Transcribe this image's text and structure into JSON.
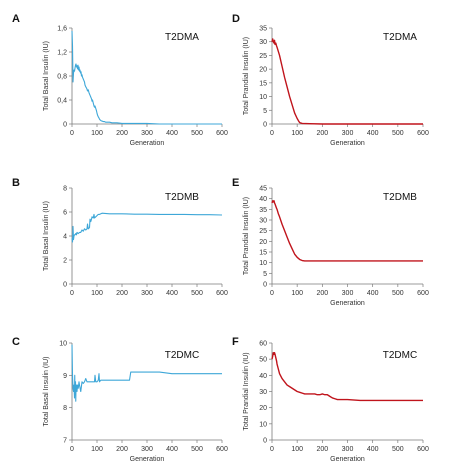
{
  "chart_data": [
    {
      "type": "line",
      "letter": "A",
      "title": "T2DMA",
      "xlabel": "Generation",
      "ylabel": "Total Basal Insulin (IU)",
      "xlim": [
        0,
        600
      ],
      "ylim": [
        0,
        1.6
      ],
      "xticks": [
        0,
        100,
        200,
        300,
        400,
        500,
        600
      ],
      "yticks": [
        0,
        0.4,
        0.8,
        1.2,
        1.6
      ],
      "ytick_labels": [
        "0",
        "0,4",
        "0,8",
        "1,2",
        "1,6"
      ],
      "grid": false,
      "color": "#3ea7d8",
      "series": [
        {
          "x": [
            0,
            2,
            4,
            6,
            8,
            10,
            12,
            14,
            16,
            18,
            20,
            22,
            24,
            26,
            28,
            30,
            32,
            34,
            36,
            38,
            40,
            42,
            45,
            48,
            50,
            52,
            55,
            58,
            60,
            62,
            65,
            68,
            70,
            72,
            75,
            78,
            80,
            82,
            85,
            88,
            90,
            92,
            95,
            98,
            100,
            102,
            105,
            108,
            110,
            112,
            115,
            118,
            120,
            125,
            130,
            135,
            140,
            150,
            160,
            170,
            180,
            200,
            250,
            300,
            350,
            400,
            450,
            500,
            550,
            600
          ],
          "y": [
            1.55,
            1.3,
            0.7,
            0.85,
            0.9,
            0.88,
            0.93,
            0.98,
            1.0,
            0.95,
            0.97,
            0.92,
            0.98,
            0.9,
            0.95,
            0.88,
            0.9,
            0.85,
            0.87,
            0.8,
            0.82,
            0.78,
            0.75,
            0.72,
            0.7,
            0.65,
            0.62,
            0.6,
            0.58,
            0.55,
            0.57,
            0.52,
            0.5,
            0.48,
            0.45,
            0.42,
            0.38,
            0.4,
            0.35,
            0.3,
            0.28,
            0.3,
            0.26,
            0.22,
            0.18,
            0.15,
            0.12,
            0.1,
            0.08,
            0.07,
            0.06,
            0.05,
            0.05,
            0.04,
            0.04,
            0.03,
            0.03,
            0.03,
            0.02,
            0.02,
            0.02,
            0.01,
            0.01,
            0.01,
            0.0,
            0.0,
            0.0,
            0.0,
            0.0,
            0.0
          ]
        }
      ]
    },
    {
      "type": "line",
      "letter": "B",
      "title": "T2DMB",
      "xlabel": "",
      "ylabel": "Total Basal Insulin (IU)",
      "xlim": [
        0,
        600
      ],
      "ylim": [
        0,
        8
      ],
      "xticks": [
        0,
        100,
        200,
        300,
        400,
        500,
        600
      ],
      "yticks": [
        0,
        2,
        4,
        6,
        8
      ],
      "ytick_labels": [
        "0",
        "2",
        "4",
        "6",
        "8"
      ],
      "grid": false,
      "color": "#3ea7d8",
      "series": [
        {
          "x": [
            0,
            2,
            4,
            6,
            8,
            10,
            12,
            15,
            18,
            20,
            25,
            30,
            35,
            40,
            45,
            50,
            55,
            60,
            62,
            65,
            70,
            72,
            75,
            78,
            80,
            85,
            88,
            90,
            95,
            100,
            105,
            110,
            120,
            150,
            200,
            250,
            300,
            350,
            400,
            450,
            500,
            550,
            600
          ],
          "y": [
            3.8,
            3.5,
            4.8,
            3.7,
            4.0,
            4.1,
            4.1,
            4.2,
            4.1,
            4.3,
            4.2,
            4.3,
            4.3,
            4.5,
            4.4,
            4.6,
            4.5,
            4.6,
            5.0,
            4.6,
            4.7,
            5.4,
            5.2,
            5.4,
            5.6,
            5.5,
            5.8,
            5.5,
            5.6,
            5.7,
            5.8,
            5.8,
            5.9,
            5.85,
            5.85,
            5.82,
            5.82,
            5.8,
            5.8,
            5.8,
            5.78,
            5.78,
            5.75
          ]
        }
      ]
    },
    {
      "type": "line",
      "letter": "C",
      "title": "T2DMC",
      "xlabel": "Generation",
      "ylabel": "Total Basal Insulin (IU)",
      "xlim": [
        0,
        600
      ],
      "ylim": [
        7,
        10
      ],
      "xticks": [
        0,
        100,
        200,
        300,
        400,
        500,
        600
      ],
      "yticks": [
        7,
        8,
        9,
        10
      ],
      "ytick_labels": [
        "7",
        "8",
        "9",
        "10"
      ],
      "grid": false,
      "color": "#3ea7d8",
      "series": [
        {
          "x": [
            0,
            2,
            4,
            6,
            8,
            10,
            11,
            12,
            14,
            15,
            16,
            18,
            20,
            22,
            25,
            28,
            30,
            35,
            40,
            45,
            50,
            55,
            60,
            80,
            90,
            92,
            95,
            100,
            105,
            108,
            110,
            115,
            120,
            150,
            200,
            230,
            235,
            250,
            300,
            350,
            400,
            450,
            500,
            550,
            600
          ],
          "y": [
            9.95,
            9.0,
            8.6,
            8.5,
            8.7,
            8.3,
            9.0,
            8.4,
            8.8,
            8.2,
            8.6,
            8.7,
            8.5,
            8.7,
            8.6,
            8.8,
            8.7,
            8.5,
            8.8,
            8.75,
            8.8,
            8.9,
            8.8,
            8.8,
            8.8,
            9.0,
            8.8,
            8.8,
            8.85,
            9.05,
            8.8,
            8.85,
            8.85,
            8.85,
            8.85,
            8.85,
            9.1,
            9.1,
            9.1,
            9.1,
            9.05,
            9.05,
            9.05,
            9.05,
            9.05
          ]
        }
      ]
    },
    {
      "type": "line",
      "letter": "D",
      "title": "T2DMA",
      "xlabel": "Generation",
      "ylabel": "Total Prandial Insulin (IU)",
      "xlim": [
        0,
        600
      ],
      "ylim": [
        0,
        35
      ],
      "xticks": [
        0,
        100,
        200,
        300,
        400,
        500,
        600
      ],
      "yticks": [
        0,
        5,
        10,
        15,
        20,
        25,
        30,
        35
      ],
      "ytick_labels": [
        "0",
        "5",
        "10",
        "15",
        "20",
        "25",
        "30",
        "35"
      ],
      "grid": false,
      "color": "#c0141c",
      "series": [
        {
          "x": [
            0,
            3,
            5,
            8,
            10,
            12,
            15,
            18,
            20,
            25,
            30,
            40,
            50,
            60,
            70,
            80,
            90,
            100,
            105,
            110,
            120,
            150,
            200,
            300,
            400,
            500,
            600
          ],
          "y": [
            30,
            31,
            30,
            29.5,
            30.5,
            29,
            29.5,
            28.5,
            28,
            26.5,
            25,
            21,
            17,
            13.5,
            10,
            7,
            4,
            2,
            1.2,
            0.5,
            0.2,
            0.1,
            0,
            0,
            0,
            0,
            0
          ]
        }
      ]
    },
    {
      "type": "line",
      "letter": "E",
      "title": "T2DMB",
      "xlabel": "Generation",
      "ylabel": "Total Prandial Insulin (IU)",
      "xlim": [
        0,
        600
      ],
      "ylim": [
        0,
        45
      ],
      "xticks": [
        0,
        100,
        200,
        300,
        400,
        500,
        600
      ],
      "yticks": [
        0,
        5,
        10,
        15,
        20,
        25,
        30,
        35,
        40,
        45
      ],
      "ytick_labels": [
        "0",
        "5",
        "10",
        "15",
        "20",
        "25",
        "30",
        "35",
        "40",
        "45"
      ],
      "grid": false,
      "color": "#c0141c",
      "series": [
        {
          "x": [
            0,
            3,
            5,
            8,
            10,
            12,
            15,
            18,
            20,
            25,
            30,
            40,
            50,
            60,
            70,
            80,
            90,
            100,
            110,
            120,
            130,
            150,
            200,
            300,
            400,
            500,
            600
          ],
          "y": [
            38,
            39,
            38.5,
            39,
            38,
            37.5,
            36.5,
            35.5,
            35,
            33,
            31.5,
            28,
            25,
            22,
            19,
            16.5,
            14,
            12.5,
            11.5,
            11,
            10.8,
            10.8,
            10.8,
            10.8,
            10.8,
            10.8,
            10.8
          ]
        }
      ]
    },
    {
      "type": "line",
      "letter": "F",
      "title": "T2DMC",
      "xlabel": "Generation",
      "ylabel": "Total Prandial Insulin (IU)",
      "xlim": [
        0,
        600
      ],
      "ylim": [
        0,
        60
      ],
      "xticks": [
        0,
        100,
        200,
        300,
        400,
        500,
        600
      ],
      "yticks": [
        0,
        10,
        20,
        30,
        40,
        50,
        60
      ],
      "ytick_labels": [
        "0",
        "10",
        "20",
        "30",
        "40",
        "50",
        "60"
      ],
      "grid": false,
      "color": "#c0141c",
      "series": [
        {
          "x": [
            0,
            3,
            5,
            8,
            10,
            12,
            15,
            18,
            20,
            25,
            30,
            40,
            50,
            60,
            70,
            80,
            90,
            100,
            110,
            120,
            130,
            140,
            150,
            160,
            170,
            180,
            190,
            200,
            210,
            220,
            230,
            240,
            250,
            260,
            280,
            300,
            350,
            400,
            450,
            500,
            550,
            600
          ],
          "y": [
            50,
            52,
            54,
            53,
            54,
            53,
            51,
            49,
            47,
            44,
            41,
            38,
            36,
            34,
            33,
            32,
            31,
            30,
            29.5,
            29,
            28.5,
            28.5,
            28.5,
            28.5,
            28.5,
            28,
            28,
            28.5,
            28,
            28,
            27,
            26,
            25.5,
            25,
            25,
            25,
            24.5,
            24.5,
            24.5,
            24.5,
            24.5,
            24.5
          ]
        }
      ]
    }
  ]
}
